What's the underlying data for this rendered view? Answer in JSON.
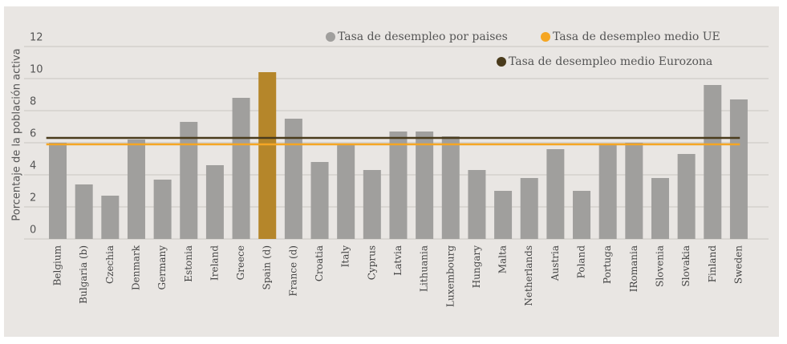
{
  "chart_data": {
    "type": "bar",
    "y_label": "Porcentaje de la población activa",
    "categories": [
      "Belgium",
      "Bulgaria (b)",
      "Czechia",
      "Denmark",
      "Germany",
      "Estonia",
      "Ireland",
      "Greece",
      "Spain (d)",
      "France (d)",
      "Croatia",
      "Italy",
      "Cyprus",
      "Latvia",
      "Lithuania",
      "Luxembourg",
      "Hungary",
      "Malta",
      "Netherlands",
      "Austria",
      "Poland",
      "Portuga",
      "IRomania",
      "Slovenia",
      "Slovakia",
      "Finland",
      "Sweden"
    ],
    "series": [
      {
        "name": "Tasa de desempleo por paises",
        "color": "#a09f9d",
        "values": [
          6.0,
          3.4,
          2.7,
          6.2,
          3.7,
          7.3,
          4.6,
          8.8,
          10.4,
          7.5,
          4.8,
          5.9,
          4.3,
          6.7,
          6.7,
          6.4,
          4.3,
          3.0,
          3.8,
          5.6,
          3.0,
          5.9,
          6.0,
          3.8,
          5.3,
          9.6,
          8.7
        ],
        "bar_colors": [
          "#a09f9d",
          "#a09f9d",
          "#a09f9d",
          "#a09f9d",
          "#a09f9d",
          "#a09f9d",
          "#a09f9d",
          "#a09f9d",
          "#b5862a",
          "#a09f9d",
          "#a09f9d",
          "#a09f9d",
          "#a09f9d",
          "#a09f9d",
          "#a09f9d",
          "#a09f9d",
          "#a09f9d",
          "#a09f9d",
          "#a09f9d",
          "#a09f9d",
          "#a09f9d",
          "#a09f9d",
          "#a09f9d",
          "#a09f9d",
          "#a09f9d",
          "#a09f9d",
          "#a09f9d"
        ]
      },
      {
        "name": "Tasa de desempleo medio UE",
        "type": "line",
        "color": "#f5a623",
        "value": 5.9
      },
      {
        "name": "Tasa de desempleo medio Eurozona",
        "type": "line",
        "color": "#4a3b1c",
        "value": 6.3
      }
    ],
    "ylim": [
      0,
      12
    ],
    "yticks": [
      0,
      2,
      4,
      6,
      8,
      10,
      12
    ],
    "grid": true
  }
}
